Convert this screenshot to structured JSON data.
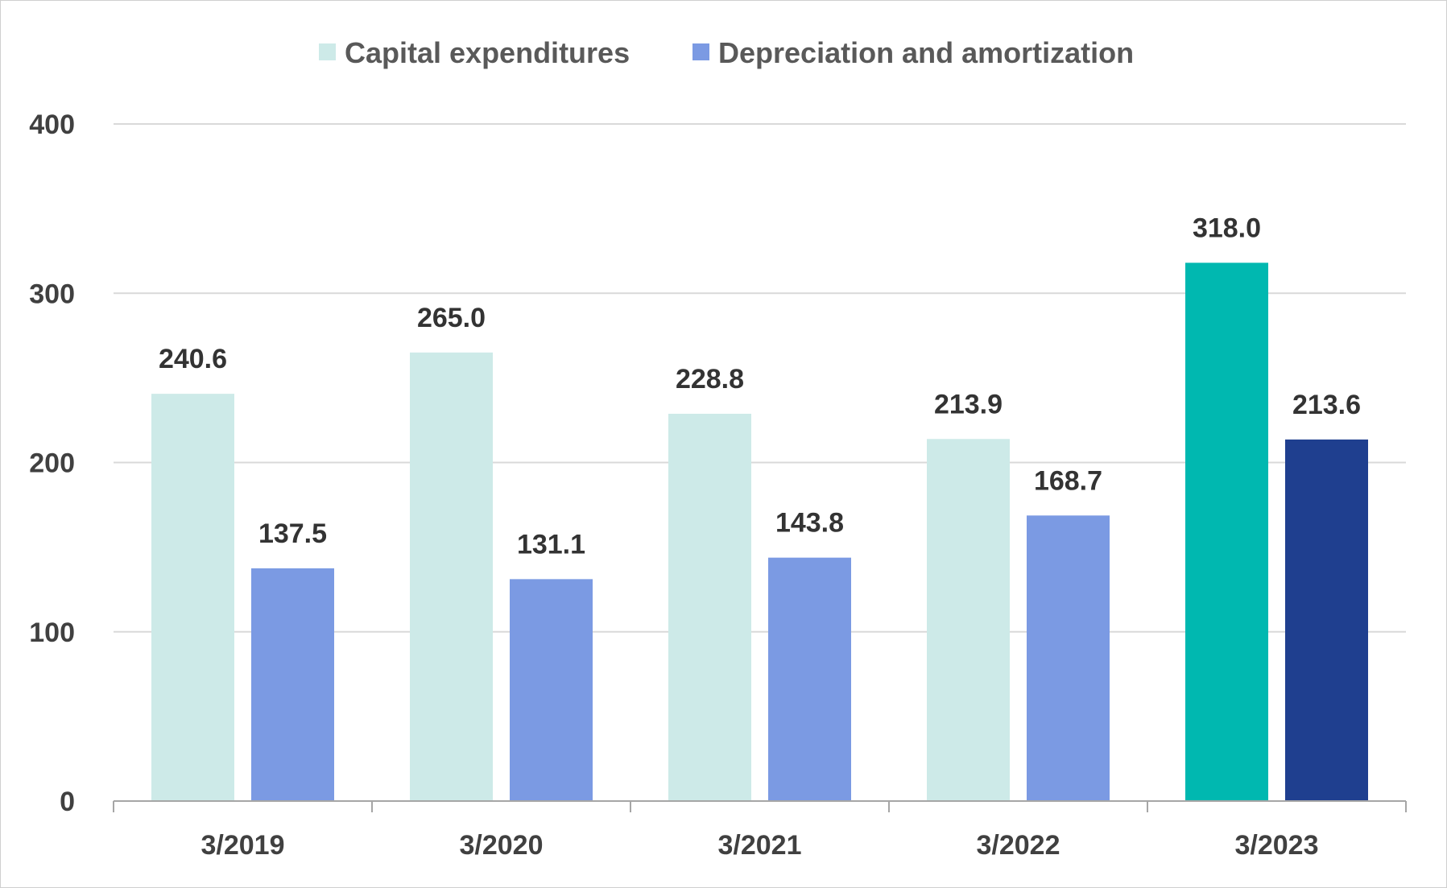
{
  "chart_data": {
    "type": "bar",
    "title": "",
    "xlabel": "",
    "ylabel": "",
    "categories": [
      "3/2019",
      "3/2020",
      "3/2021",
      "3/2022",
      "3/2023"
    ],
    "series": [
      {
        "name": "Capital expenditures",
        "values": [
          240.6,
          265.0,
          228.8,
          213.9,
          318.0
        ],
        "labels": [
          "240.6",
          "265.0",
          "228.8",
          "213.9",
          "318.0"
        ],
        "color": "#cdeae8",
        "highlight_color": "#00b8b0"
      },
      {
        "name": "Depreciation and amortization",
        "values": [
          137.5,
          131.1,
          143.8,
          168.7,
          213.6
        ],
        "labels": [
          "137.5",
          "131.1",
          "143.8",
          "168.7",
          "213.6"
        ],
        "color": "#7b9ae3",
        "highlight_color": "#1f3f8f"
      }
    ],
    "highlight_category_index": 4,
    "ylim": [
      0,
      400
    ],
    "yticks": [
      "0",
      "100",
      "200",
      "300",
      "400"
    ],
    "ytick_values": [
      0,
      100,
      200,
      300,
      400
    ],
    "grid": true,
    "legend_position": "top-center",
    "colors": {
      "grid": "#d9d9d9",
      "axis": "#a6a6a6",
      "text": "#404040"
    }
  }
}
